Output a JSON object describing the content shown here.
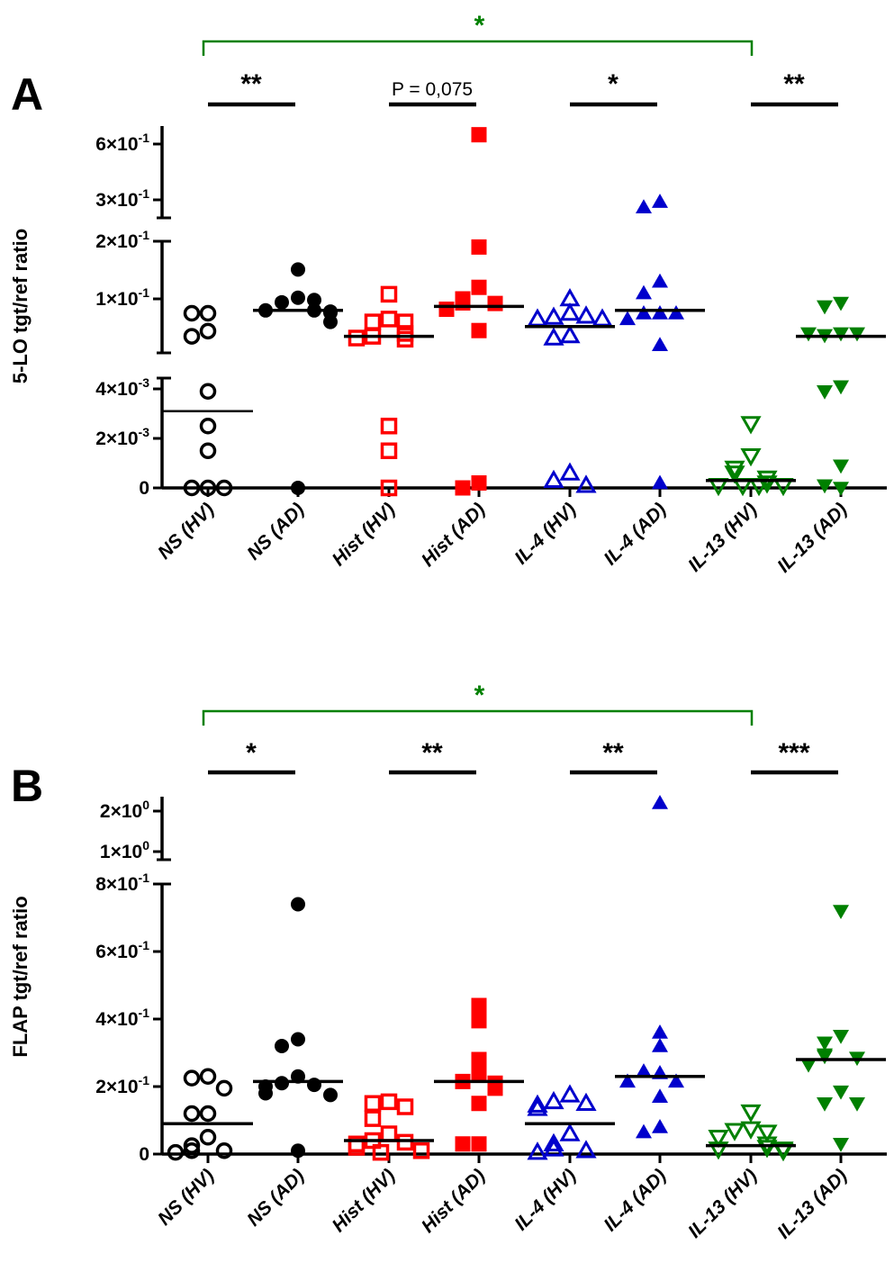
{
  "chart_data": [
    {
      "type": "scatter",
      "panel_label": "A",
      "ylabel": "5-LO tgt/ref ratio",
      "categories": [
        "NS (HV)",
        "NS (AD)",
        "Hist (HV)",
        "Hist (AD)",
        "IL-4 (HV)",
        "IL-4 (AD)",
        "IL-13 (HV)",
        "IL-13 (AD)"
      ],
      "y_axis_segments": [
        {
          "range": [
            0,
            0.0045
          ],
          "ticks": [
            {
              "v": 0,
              "label": "0"
            },
            {
              "v": 0.002,
              "label": "2×10",
              "exp": "-3"
            },
            {
              "v": 0.004,
              "label": "4×10",
              "exp": "-3"
            }
          ]
        },
        {
          "range": [
            0.006,
            0.2
          ],
          "ticks": [
            {
              "v": 0.1,
              "label": "1×10",
              "exp": "-1"
            },
            {
              "v": 0.2,
              "label": "2×10",
              "exp": "-1"
            }
          ]
        },
        {
          "range": [
            0.2,
            0.65
          ],
          "ticks": [
            {
              "v": 0.3,
              "label": "3×10",
              "exp": "-1"
            },
            {
              "v": 0.6,
              "label": "6×10",
              "exp": "-1"
            }
          ]
        }
      ],
      "series": [
        {
          "name": "NS (HV)",
          "color": "#000000",
          "marker": "circle-open",
          "median": 0.0031,
          "values": [
            0.075,
            0.075,
            0.044,
            0.035,
            0.0039,
            0.0025,
            0.0015,
            0,
            0,
            0
          ]
        },
        {
          "name": "NS (AD)",
          "color": "#000000",
          "marker": "circle-filled",
          "median": 0.08,
          "values": [
            0.151,
            0.102,
            0.094,
            0.098,
            0.08,
            0.08,
            0.078,
            0.076,
            0.06,
            0
          ]
        },
        {
          "name": "Hist (HV)",
          "color": "#ff0000",
          "marker": "square-open",
          "median": 0.035,
          "values": [
            0.108,
            0.065,
            0.06,
            0.06,
            0.04,
            0.035,
            0.03,
            0.032,
            0.0025,
            0.0015,
            0
          ]
        },
        {
          "name": "Hist (AD)",
          "color": "#ff0000",
          "marker": "square-filled",
          "median": 0.087,
          "values": [
            0.65,
            0.19,
            0.12,
            0.1,
            0.093,
            0.092,
            0.082,
            0.045,
            0.0002,
            0
          ]
        },
        {
          "name": "IL-4 (HV)",
          "color": "#0000cc",
          "marker": "triangle-up-open",
          "median": 0.052,
          "values": [
            0.1,
            0.075,
            0.068,
            0.07,
            0.065,
            0.065,
            0.036,
            0.032,
            0.0006,
            0.0003,
            0.0001
          ]
        },
        {
          "name": "IL-4 (AD)",
          "color": "#0000cc",
          "marker": "triangle-up-filled",
          "median": 0.08,
          "values": [
            0.29,
            0.26,
            0.13,
            0.11,
            0.075,
            0.075,
            0.075,
            0.065,
            0.02,
            0.0002
          ]
        },
        {
          "name": "IL-13 (HV)",
          "color": "#008000",
          "marker": "triangle-down-open",
          "median": 0.0003,
          "values": [
            0.0026,
            0.0013,
            0.0008,
            0.0006,
            0.0004,
            0.0002,
            0.0001,
            0.0001,
            0.0001,
            0.0001
          ]
        },
        {
          "name": "IL-13 (AD)",
          "color": "#008000",
          "marker": "triangle-down-filled",
          "median": 0.035,
          "values": [
            0.093,
            0.087,
            0.04,
            0.037,
            0.04,
            0.04,
            -0.0,
            0.0041,
            0.0039,
            0.0009,
            0.0001
          ]
        }
      ],
      "significance": [
        {
          "pair": [
            0,
            1
          ],
          "label": "**"
        },
        {
          "pair": [
            2,
            3
          ],
          "label": "P = 0,075"
        },
        {
          "pair": [
            4,
            5
          ],
          "label": "*"
        },
        {
          "pair": [
            6,
            7
          ],
          "label": "**"
        },
        {
          "pair": [
            0,
            6
          ],
          "label": "*",
          "color": "#008000",
          "bracket": true
        }
      ]
    },
    {
      "type": "scatter",
      "panel_label": "B",
      "ylabel": "FLAP tgt/ref ratio",
      "categories": [
        "NS (HV)",
        "NS (AD)",
        "Hist (HV)",
        "Hist (AD)",
        "IL-4 (HV)",
        "IL-4 (AD)",
        "IL-13 (HV)",
        "IL-13 (AD)"
      ],
      "y_axis_segments": [
        {
          "range": [
            0,
            0.8
          ],
          "ticks": [
            {
              "v": 0,
              "label": "0"
            },
            {
              "v": 0.2,
              "label": "2×10",
              "exp": "-1"
            },
            {
              "v": 0.4,
              "label": "4×10",
              "exp": "-1"
            },
            {
              "v": 0.6,
              "label": "6×10",
              "exp": "-1"
            },
            {
              "v": 0.8,
              "label": "8×10",
              "exp": "-1"
            }
          ]
        },
        {
          "range": [
            0.8,
            2.3
          ],
          "ticks": [
            {
              "v": 1,
              "label": "1×10",
              "exp": "0"
            },
            {
              "v": 2,
              "label": "2×10",
              "exp": "0"
            }
          ]
        }
      ],
      "series": [
        {
          "name": "NS (HV)",
          "color": "#000000",
          "marker": "circle-open",
          "median": 0.09,
          "values": [
            0.23,
            0.225,
            0.195,
            0.12,
            0.12,
            0.05,
            0.025,
            0.01,
            0.01,
            0.005
          ]
        },
        {
          "name": "NS (AD)",
          "color": "#000000",
          "marker": "circle-filled",
          "median": 0.215,
          "values": [
            0.74,
            0.34,
            0.32,
            0.23,
            0.21,
            0.205,
            0.2,
            0.18,
            0.175,
            0.01
          ]
        },
        {
          "name": "Hist (HV)",
          "color": "#ff0000",
          "marker": "square-open",
          "median": 0.04,
          "values": [
            0.155,
            0.15,
            0.14,
            0.105,
            0.06,
            0.04,
            0.035,
            0.03,
            0.02,
            0.01,
            0.005
          ]
        },
        {
          "name": "Hist (AD)",
          "color": "#ff0000",
          "marker": "square-filled",
          "median": 0.215,
          "values": [
            0.44,
            0.395,
            0.28,
            0.235,
            0.215,
            0.21,
            0.195,
            0.15,
            0.03,
            0.03
          ]
        },
        {
          "name": "IL-4 (HV)",
          "color": "#0000cc",
          "marker": "triangle-up-open",
          "median": 0.09,
          "values": [
            0.175,
            0.155,
            0.15,
            0.145,
            0.135,
            0.06,
            0.03,
            0.015,
            0.01,
            0.005
          ]
        },
        {
          "name": "IL-4 (AD)",
          "color": "#0000cc",
          "marker": "triangle-up-filled",
          "median": 0.23,
          "values": [
            2.2,
            0.36,
            0.32,
            0.24,
            0.245,
            0.215,
            0.215,
            0.17,
            0.08,
            0.065
          ]
        },
        {
          "name": "IL-13 (HV)",
          "color": "#008000",
          "marker": "triangle-down-open",
          "median": 0.025,
          "values": [
            0.125,
            0.075,
            0.07,
            0.065,
            0.05,
            0.03,
            0.02,
            0.015,
            0.015,
            0.01
          ]
        },
        {
          "name": "IL-13 (AD)",
          "color": "#008000",
          "marker": "triangle-down-filled",
          "median": 0.28,
          "values": [
            0.72,
            0.35,
            0.33,
            0.295,
            0.29,
            0.285,
            0.265,
            0.185,
            0.15,
            0.15,
            0.03
          ]
        }
      ],
      "significance": [
        {
          "pair": [
            0,
            1
          ],
          "label": "*"
        },
        {
          "pair": [
            2,
            3
          ],
          "label": "**"
        },
        {
          "pair": [
            4,
            5
          ],
          "label": "**"
        },
        {
          "pair": [
            6,
            7
          ],
          "label": "***"
        },
        {
          "pair": [
            0,
            6
          ],
          "label": "*",
          "color": "#008000",
          "bracket": true
        }
      ]
    }
  ]
}
